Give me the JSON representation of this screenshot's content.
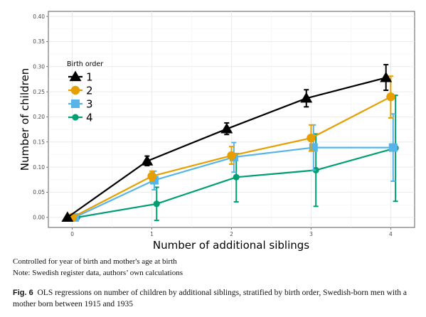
{
  "chart_data": {
    "type": "line",
    "xlabel": "Number of additional siblings",
    "ylabel": "Number of children",
    "x": [
      0,
      1,
      2,
      3,
      4
    ],
    "xlim": [
      -0.3,
      4.3
    ],
    "ylim": [
      -0.02,
      0.41
    ],
    "yticks": [
      "0.00",
      "0.05",
      "0.10",
      "0.15",
      "0.20",
      "0.25",
      "0.30",
      "0.35",
      "0.40"
    ],
    "xticks": [
      "0",
      "1",
      "2",
      "3",
      "4"
    ],
    "grid": true,
    "legend_title": "Birth order",
    "legend_position": "top-left",
    "series": [
      {
        "name": "1",
        "color": "#000000",
        "marker": "triangle",
        "values": [
          0.0,
          0.112,
          0.176,
          0.237,
          0.278
        ],
        "lower": [
          0.0,
          0.103,
          0.165,
          0.22,
          0.253
        ],
        "upper": [
          0.0,
          0.122,
          0.188,
          0.254,
          0.304
        ]
      },
      {
        "name": "2",
        "color": "#E69F00",
        "marker": "circle",
        "values": [
          0.0,
          0.082,
          0.123,
          0.158,
          0.24
        ],
        "lower": [
          0.0,
          0.073,
          0.106,
          0.132,
          0.198
        ],
        "upper": [
          0.0,
          0.092,
          0.141,
          0.184,
          0.281
        ]
      },
      {
        "name": "3",
        "color": "#56B4E9",
        "marker": "square",
        "values": [
          0.0,
          0.074,
          0.12,
          0.139,
          0.139
        ],
        "lower": [
          0.0,
          0.055,
          0.09,
          0.094,
          0.072
        ],
        "upper": [
          0.0,
          0.092,
          0.149,
          0.184,
          0.206
        ]
      },
      {
        "name": "4",
        "color": "#009E73",
        "marker": "circle-small",
        "values": [
          0.0,
          0.027,
          0.08,
          0.094,
          0.138
        ],
        "lower": [
          0.0,
          -0.006,
          0.031,
          0.022,
          0.032
        ],
        "upper": [
          0.0,
          0.06,
          0.127,
          0.166,
          0.243
        ]
      }
    ]
  },
  "notes": {
    "line1": "Controlled for year of birth and mother's age at birth",
    "line2": "Note: Swedish register data, authors’ own calculations"
  },
  "caption": {
    "label": "Fig. 6",
    "text": "OLS regressions on number of children by additional siblings, stratified by birth order, Swedish-born men with a mother born between 1915 and 1935"
  }
}
